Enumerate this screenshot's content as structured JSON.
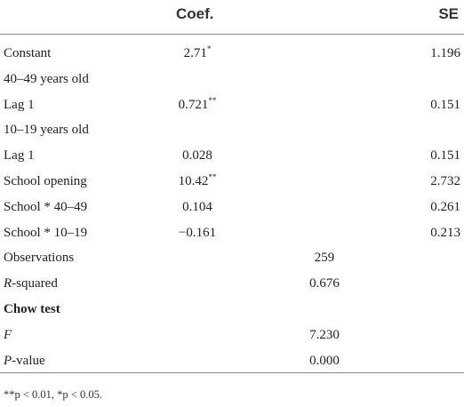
{
  "header": {
    "coef": "Coef.",
    "se": "SE"
  },
  "rows": [
    {
      "label": "Constant",
      "coef": "2.71*",
      "mid": "",
      "se": "1.196"
    },
    {
      "label": "40–49 years old",
      "coef": "",
      "mid": "",
      "se": ""
    },
    {
      "label": "Lag 1",
      "coef": "0.721**",
      "mid": "",
      "se": "0.151"
    },
    {
      "label": "10–19 years old",
      "coef": "",
      "mid": "",
      "se": ""
    },
    {
      "label": "Lag 1",
      "coef": "0.028",
      "mid": "",
      "se": "0.151"
    },
    {
      "label": "School opening",
      "coef": "10.42**",
      "mid": "",
      "se": "2.732"
    },
    {
      "label": "School * 40–49",
      "coef": "0.104",
      "mid": "",
      "se": "0.261"
    },
    {
      "label": "School * 10–19",
      "coef": "−0.161",
      "mid": "",
      "se": "0.213"
    },
    {
      "label": "Observations",
      "coef": "",
      "mid": "259",
      "se": ""
    },
    {
      "label_italic": "R",
      "label_rest": "-squared",
      "coef": "",
      "mid": "0.676",
      "se": ""
    },
    {
      "label": "Chow test",
      "bold": true,
      "coef": "",
      "mid": "",
      "se": ""
    },
    {
      "label_italic": "F",
      "label_rest": "",
      "coef": "",
      "mid": "7.230",
      "se": ""
    },
    {
      "label_italic": "P",
      "label_rest": "-value",
      "coef": "",
      "mid": "0.000",
      "se": ""
    }
  ],
  "footnote": "**p < 0.01, *p < 0.05."
}
